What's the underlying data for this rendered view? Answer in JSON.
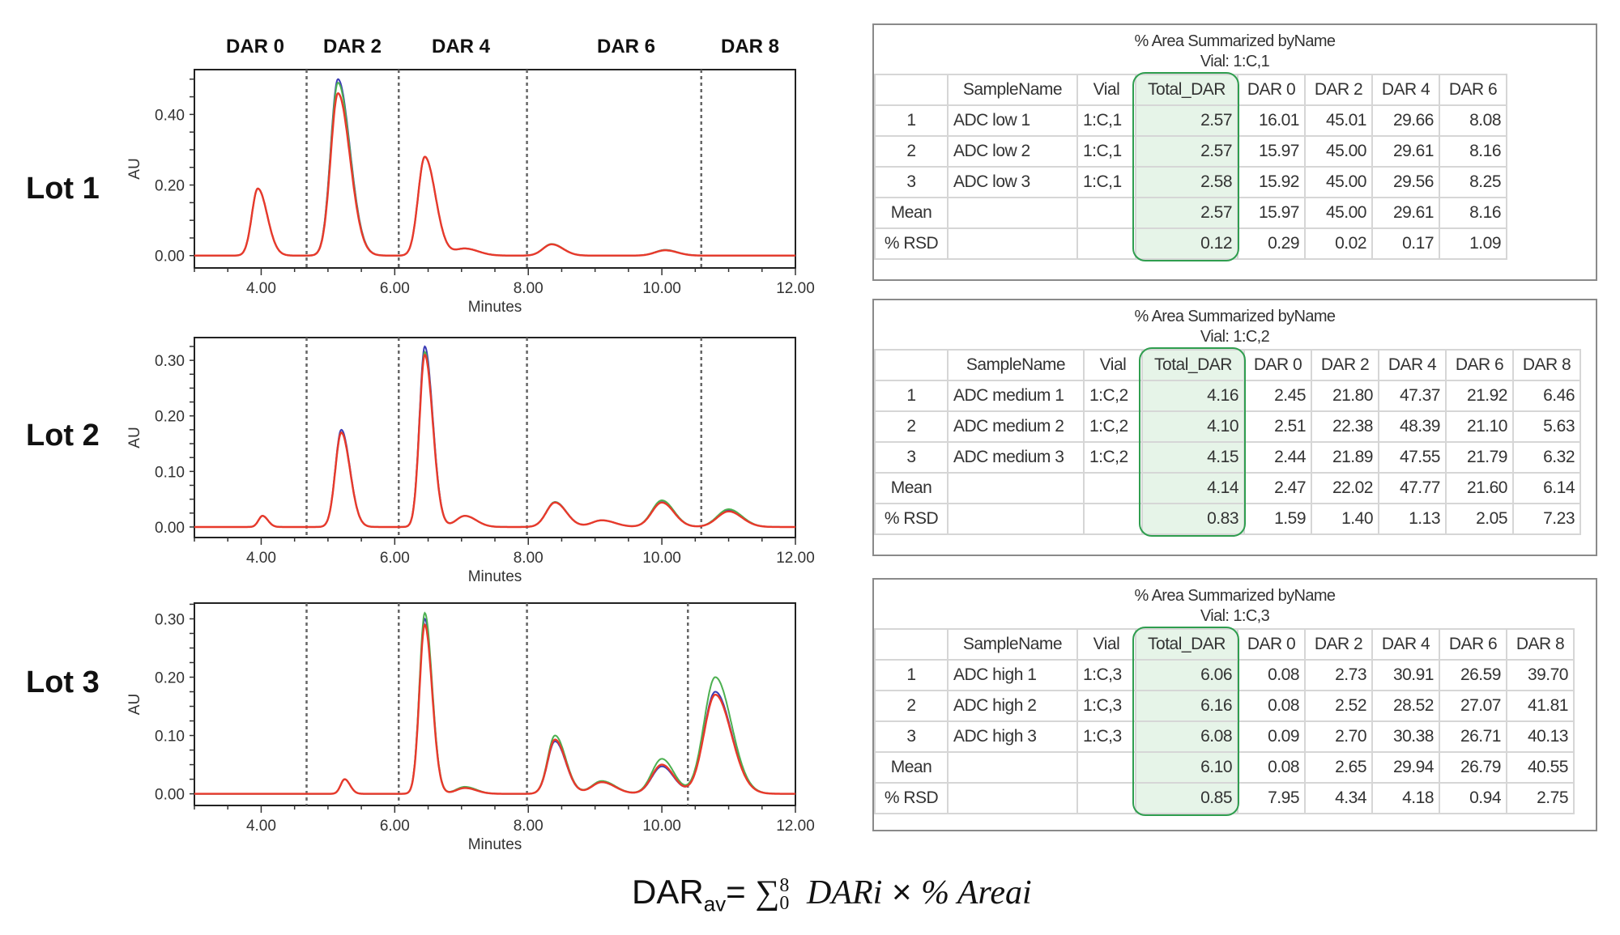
{
  "lots": [
    "Lot 1",
    "Lot 2",
    "Lot 3"
  ],
  "dar_regions": [
    "DAR 0",
    "DAR 2",
    "DAR 4",
    "DAR 6",
    "DAR 8"
  ],
  "colors": {
    "trace_1": "#3b3bb5",
    "trace_2": "#4cb050",
    "trace_3": "#e8392b",
    "highlight": "#2f9e4f",
    "highlight_fill": "#e6f4e8"
  },
  "chart_data": [
    {
      "type": "line",
      "title": "Lot 1",
      "xlabel": "Minutes",
      "ylabel": "AU",
      "xlim": [
        3,
        12
      ],
      "ylim": [
        -0.035,
        0.527
      ],
      "x_ticks": [
        "4.00",
        "6.00",
        "8.00",
        "10.00",
        "12.00"
      ],
      "y_ticks": [
        "0.00",
        "0.20",
        "0.40"
      ],
      "y_tick_values": [
        0,
        0.2,
        0.4
      ],
      "region_boundaries": [
        4.68,
        6.06,
        7.98,
        10.59
      ],
      "peaks": {
        "retention_time": [
          3.95,
          5.15,
          6.45,
          7.05,
          8.35,
          10.05
        ],
        "sigma_left": [
          0.09,
          0.11,
          0.1,
          0.15,
          0.13,
          0.15
        ],
        "sigma_right": [
          0.14,
          0.18,
          0.16,
          0.2,
          0.17,
          0.18
        ]
      },
      "series": [
        {
          "heights": [
            0.19,
            0.5,
            0.28,
            0.02,
            0.032,
            0.016
          ]
        },
        {
          "heights": [
            0.19,
            0.49,
            0.28,
            0.02,
            0.033,
            0.016
          ]
        },
        {
          "heights": [
            0.19,
            0.46,
            0.28,
            0.02,
            0.032,
            0.015
          ]
        }
      ]
    },
    {
      "type": "line",
      "title": "Lot 2",
      "xlabel": "Minutes",
      "ylabel": "AU",
      "xlim": [
        3,
        12
      ],
      "ylim": [
        -0.019,
        0.341
      ],
      "x_ticks": [
        "4.00",
        "6.00",
        "8.00",
        "10.00",
        "12.00"
      ],
      "y_ticks": [
        "0.00",
        "0.10",
        "0.20",
        "0.30"
      ],
      "y_tick_values": [
        0,
        0.1,
        0.2,
        0.3
      ],
      "region_boundaries": [
        4.68,
        6.06,
        7.98,
        10.59
      ],
      "peaks": {
        "retention_time": [
          4.02,
          5.2,
          6.45,
          7.05,
          8.4,
          9.1,
          10.0,
          11.0
        ],
        "sigma_left": [
          0.06,
          0.09,
          0.08,
          0.13,
          0.13,
          0.15,
          0.15,
          0.17
        ],
        "sigma_right": [
          0.08,
          0.13,
          0.12,
          0.17,
          0.17,
          0.2,
          0.18,
          0.2
        ]
      },
      "series": [
        {
          "heights": [
            0.02,
            0.175,
            0.325,
            0.02,
            0.045,
            0.012,
            0.045,
            0.03
          ]
        },
        {
          "heights": [
            0.02,
            0.17,
            0.315,
            0.02,
            0.045,
            0.012,
            0.048,
            0.032
          ]
        },
        {
          "heights": [
            0.02,
            0.17,
            0.31,
            0.02,
            0.044,
            0.012,
            0.044,
            0.028
          ]
        }
      ]
    },
    {
      "type": "line",
      "title": "Lot 3",
      "xlabel": "Minutes",
      "ylabel": "AU",
      "xlim": [
        3,
        12
      ],
      "ylim": [
        -0.02,
        0.327
      ],
      "x_ticks": [
        "4.00",
        "6.00",
        "8.00",
        "10.00",
        "12.00"
      ],
      "y_ticks": [
        "0.00",
        "0.10",
        "0.20",
        "0.30"
      ],
      "y_tick_values": [
        0,
        0.1,
        0.2,
        0.3
      ],
      "region_boundaries": [
        4.68,
        6.06,
        7.98,
        10.39
      ],
      "peaks": {
        "retention_time": [
          5.25,
          6.45,
          7.05,
          8.4,
          9.1,
          10.0,
          10.8
        ],
        "sigma_left": [
          0.06,
          0.08,
          0.13,
          0.11,
          0.15,
          0.15,
          0.17
        ],
        "sigma_right": [
          0.08,
          0.11,
          0.17,
          0.16,
          0.2,
          0.18,
          0.24
        ]
      },
      "series": [
        {
          "heights": [
            0.025,
            0.3,
            0.01,
            0.09,
            0.02,
            0.047,
            0.175
          ]
        },
        {
          "heights": [
            0.025,
            0.31,
            0.012,
            0.1,
            0.022,
            0.06,
            0.2
          ]
        },
        {
          "heights": [
            0.025,
            0.29,
            0.01,
            0.093,
            0.02,
            0.05,
            0.17
          ]
        }
      ]
    }
  ],
  "tables": [
    {
      "title": "% Area Summarized byName",
      "subtitle": "Vial: 1:C,1",
      "headers": [
        "",
        "SampleName",
        "Vial",
        "Total_DAR",
        "DAR 0",
        "DAR 2",
        "DAR 4",
        "DAR 6"
      ],
      "rows": [
        [
          "1",
          "ADC low 1",
          "1:C,1",
          "2.57",
          "16.01",
          "45.01",
          "29.66",
          "8.08"
        ],
        [
          "2",
          "ADC low 2",
          "1:C,1",
          "2.57",
          "15.97",
          "45.00",
          "29.61",
          "8.16"
        ],
        [
          "3",
          "ADC low 3",
          "1:C,1",
          "2.58",
          "15.92",
          "45.00",
          "29.56",
          "8.25"
        ],
        [
          "Mean",
          "",
          "",
          "2.57",
          "15.97",
          "45.00",
          "29.61",
          "8.16"
        ],
        [
          "% RSD",
          "",
          "",
          "0.12",
          "0.29",
          "0.02",
          "0.17",
          "1.09"
        ]
      ]
    },
    {
      "title": "% Area Summarized byName",
      "subtitle": "Vial: 1:C,2",
      "headers": [
        "",
        "SampleName",
        "Vial",
        "Total_DAR",
        "DAR 0",
        "DAR 2",
        "DAR 4",
        "DAR 6",
        "DAR 8"
      ],
      "rows": [
        [
          "1",
          "ADC medium 1",
          "1:C,2",
          "4.16",
          "2.45",
          "21.80",
          "47.37",
          "21.92",
          "6.46"
        ],
        [
          "2",
          "ADC medium 2",
          "1:C,2",
          "4.10",
          "2.51",
          "22.38",
          "48.39",
          "21.10",
          "5.63"
        ],
        [
          "3",
          "ADC medium 3",
          "1:C,2",
          "4.15",
          "2.44",
          "21.89",
          "47.55",
          "21.79",
          "6.32"
        ],
        [
          "Mean",
          "",
          "",
          "4.14",
          "2.47",
          "22.02",
          "47.77",
          "21.60",
          "6.14"
        ],
        [
          "% RSD",
          "",
          "",
          "0.83",
          "1.59",
          "1.40",
          "1.13",
          "2.05",
          "7.23"
        ]
      ]
    },
    {
      "title": "% Area Summarized byName",
      "subtitle": "Vial: 1:C,3",
      "headers": [
        "",
        "SampleName",
        "Vial",
        "Total_DAR",
        "DAR 0",
        "DAR 2",
        "DAR 4",
        "DAR 6",
        "DAR 8"
      ],
      "rows": [
        [
          "1",
          "ADC high 1",
          "1:C,3",
          "6.06",
          "0.08",
          "2.73",
          "30.91",
          "26.59",
          "39.70"
        ],
        [
          "2",
          "ADC high 2",
          "1:C,3",
          "6.16",
          "0.08",
          "2.52",
          "28.52",
          "27.07",
          "41.81"
        ],
        [
          "3",
          "ADC high 3",
          "1:C,3",
          "6.08",
          "0.09",
          "2.70",
          "30.38",
          "26.71",
          "40.13"
        ],
        [
          "Mean",
          "",
          "",
          "6.10",
          "0.08",
          "2.65",
          "29.94",
          "26.79",
          "40.55"
        ],
        [
          "% RSD",
          "",
          "",
          "0.85",
          "7.95",
          "4.34",
          "4.18",
          "0.94",
          "2.75"
        ]
      ]
    }
  ],
  "formula": {
    "lhs": "DAR",
    "lhs_sub": "av",
    "eq": "=",
    "sigma": "∑",
    "upper": "8",
    "lower": "0",
    "term1": "DARi",
    "times": "×",
    "term2": "% Areai"
  }
}
